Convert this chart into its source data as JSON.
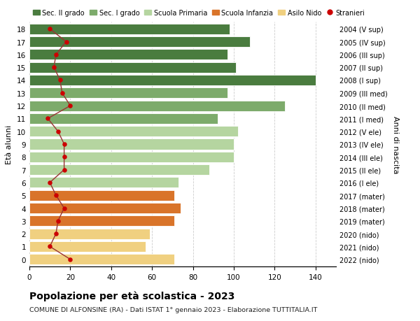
{
  "ages": [
    18,
    17,
    16,
    15,
    14,
    13,
    12,
    11,
    10,
    9,
    8,
    7,
    6,
    5,
    4,
    3,
    2,
    1,
    0
  ],
  "anni_nascita": [
    "2004 (V sup)",
    "2005 (IV sup)",
    "2006 (III sup)",
    "2007 (II sup)",
    "2008 (I sup)",
    "2009 (III med)",
    "2010 (II med)",
    "2011 (I med)",
    "2012 (V ele)",
    "2013 (IV ele)",
    "2014 (III ele)",
    "2015 (II ele)",
    "2016 (I ele)",
    "2017 (mater)",
    "2018 (mater)",
    "2019 (mater)",
    "2020 (nido)",
    "2021 (nido)",
    "2022 (nido)"
  ],
  "bar_values": [
    98,
    108,
    97,
    101,
    140,
    97,
    125,
    92,
    102,
    100,
    100,
    88,
    73,
    71,
    74,
    71,
    59,
    57,
    71
  ],
  "stranieri_values": [
    10,
    18,
    13,
    12,
    15,
    16,
    20,
    9,
    14,
    17,
    17,
    17,
    10,
    13,
    17,
    14,
    13,
    10,
    20
  ],
  "bar_colors": [
    "#4a7c3f",
    "#4a7c3f",
    "#4a7c3f",
    "#4a7c3f",
    "#4a7c3f",
    "#7dab6b",
    "#7dab6b",
    "#7dab6b",
    "#b5d5a0",
    "#b5d5a0",
    "#b5d5a0",
    "#b5d5a0",
    "#b5d5a0",
    "#d9742a",
    "#d9742a",
    "#d9742a",
    "#f0d080",
    "#f0d080",
    "#f0d080"
  ],
  "legend_labels": [
    "Sec. II grado",
    "Sec. I grado",
    "Scuola Primaria",
    "Scuola Infanzia",
    "Asilo Nido",
    "Stranieri"
  ],
  "legend_colors": [
    "#4a7c3f",
    "#7dab6b",
    "#b5d5a0",
    "#d9742a",
    "#f0d080",
    "#cc0000"
  ],
  "stranieri_color": "#cc0000",
  "line_color": "#993333",
  "title": "Popolazione per età scolastica - 2023",
  "subtitle": "COMUNE DI ALFONSINE (RA) - Dati ISTAT 1° gennaio 2023 - Elaborazione TUTTITALIA.IT",
  "ylabel_left": "Età alunni",
  "ylabel_right": "Anni di nascita",
  "xlim": [
    0,
    150
  ],
  "xticks": [
    0,
    20,
    40,
    60,
    80,
    100,
    120,
    140
  ],
  "bg_color": "#ffffff",
  "grid_color": "#cccccc"
}
